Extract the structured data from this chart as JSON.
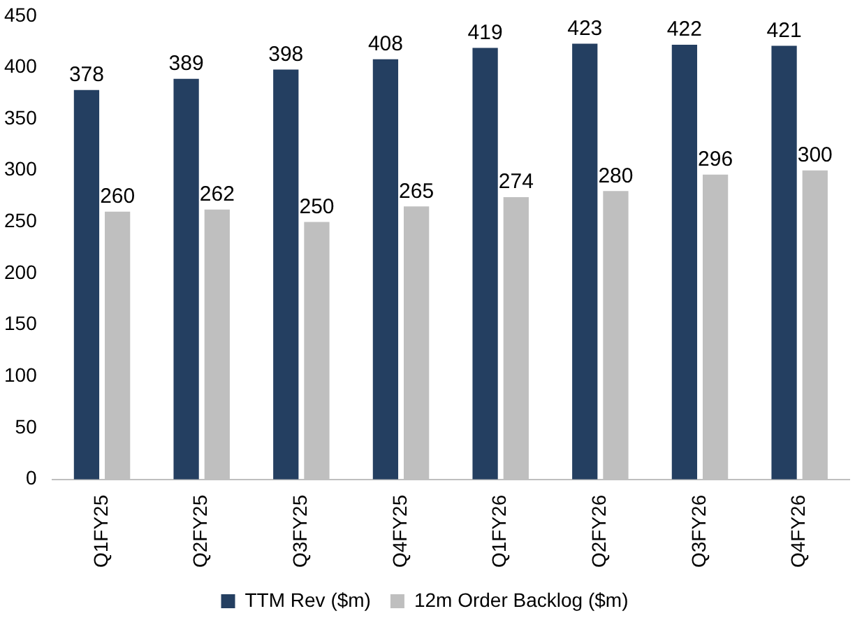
{
  "chart_data": {
    "type": "bar",
    "categories": [
      "Q1FY25",
      "Q2FY25",
      "Q3FY25",
      "Q4FY25",
      "Q1FY26",
      "Q2FY26",
      "Q3FY26",
      "Q4FY26"
    ],
    "series": [
      {
        "name": "TTM Rev ($m)",
        "color": "#243f61",
        "values": [
          378,
          389,
          398,
          408,
          419,
          423,
          422,
          421
        ]
      },
      {
        "name": "12m Order Backlog ($m)",
        "color": "#bfbfbf",
        "values": [
          260,
          262,
          250,
          265,
          274,
          280,
          296,
          300
        ]
      }
    ],
    "ylim": [
      0,
      450
    ],
    "yticks": [
      0,
      50,
      100,
      150,
      200,
      250,
      300,
      350,
      400,
      450
    ],
    "data_labels": true,
    "grid": false,
    "legend": "bottom"
  }
}
